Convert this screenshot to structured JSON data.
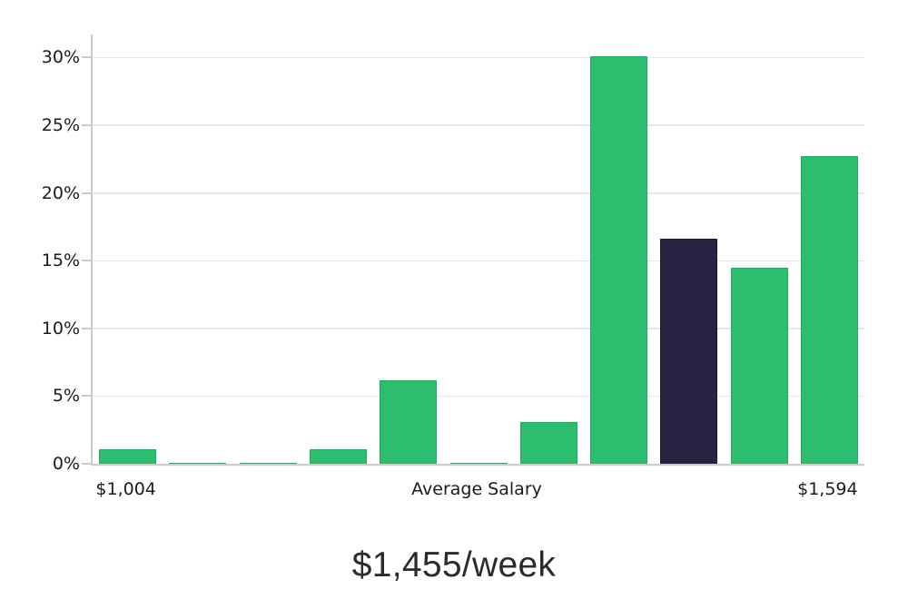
{
  "chart_data": {
    "type": "bar",
    "title": "",
    "caption": "$1,455/week",
    "xlabel": "",
    "ylabel": "",
    "ylim": [
      0,
      31.7
    ],
    "grid": true,
    "legend": "none",
    "y_tick_labels": [
      "0%",
      "5%",
      "10%",
      "15%",
      "20%",
      "25%",
      "30%"
    ],
    "y_tick_values": [
      0,
      5,
      10,
      15,
      20,
      25,
      30
    ],
    "categories": [
      "$1,004",
      "",
      "",
      "",
      "",
      "Average Salary",
      "",
      "",
      "",
      "",
      "$1,594"
    ],
    "values": [
      1.1,
      0.1,
      0.1,
      1.1,
      6.2,
      0.1,
      3.1,
      30.1,
      16.6,
      14.5,
      22.7
    ],
    "highlight_index": 8,
    "colors": {
      "bar": "#2dbd6f",
      "bar_border": "#24a861",
      "highlight": "#272343",
      "highlight_border": "#1c1935",
      "grid": "#e7e7e7",
      "axis": "#cbcbcb",
      "label_text": "#1b1b1b",
      "caption_text": "#2b2b2b",
      "background": "#ffffff"
    }
  }
}
